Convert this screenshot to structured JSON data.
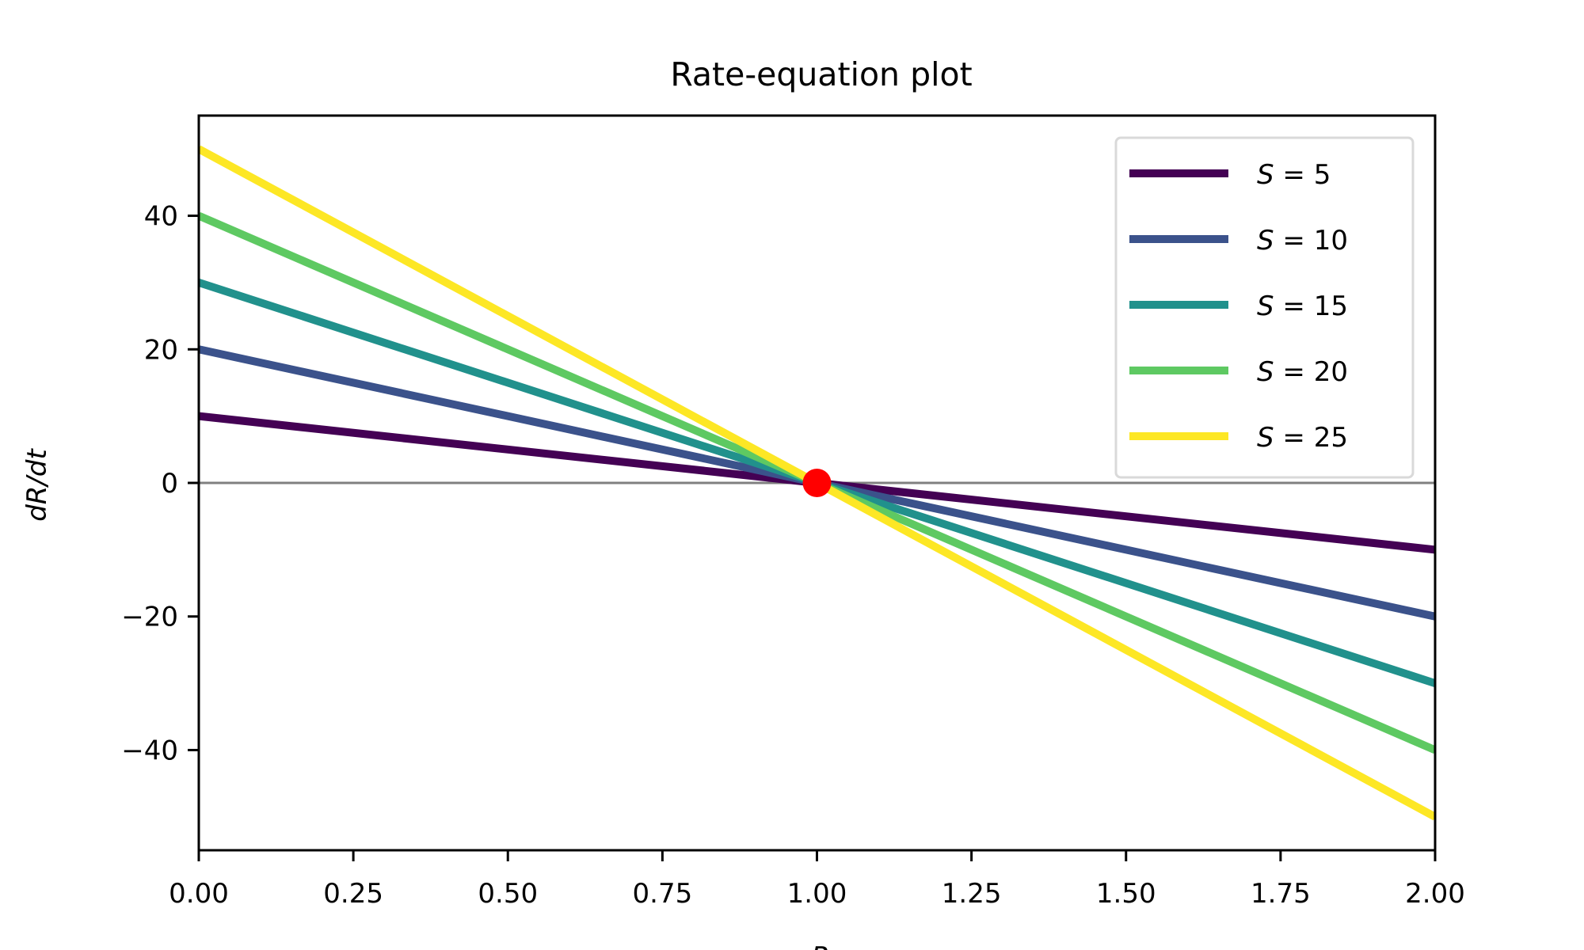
{
  "chart_data": {
    "type": "line",
    "title": "Rate-equation plot",
    "xlabel": "R",
    "ylabel": "dR/dt",
    "xlim": [
      0.0,
      2.0
    ],
    "ylim": [
      -55,
      55
    ],
    "x_ticks": [
      "0.00",
      "0.25",
      "0.50",
      "0.75",
      "1.00",
      "1.25",
      "1.50",
      "1.75",
      "2.00"
    ],
    "y_ticks": [
      "−40",
      "−20",
      "0",
      "20",
      "40"
    ],
    "x_tick_values": [
      0.0,
      0.25,
      0.5,
      0.75,
      1.0,
      1.25,
      1.5,
      1.75,
      2.0
    ],
    "y_tick_values": [
      -40,
      -20,
      0,
      20,
      40
    ],
    "grid": false,
    "legend_position": "top-right",
    "reference_line": {
      "y": 0,
      "color": "#808080"
    },
    "series": [
      {
        "name": "S = 5",
        "italic": "S",
        "rest": " = 5",
        "color": "#440154",
        "x": [
          0.0,
          2.0
        ],
        "y": [
          10,
          -10
        ]
      },
      {
        "name": "S = 10",
        "italic": "S",
        "rest": " = 10",
        "color": "#3b528b",
        "x": [
          0.0,
          2.0
        ],
        "y": [
          20,
          -20
        ]
      },
      {
        "name": "S = 15",
        "italic": "S",
        "rest": " = 15",
        "color": "#21918c",
        "x": [
          0.0,
          2.0
        ],
        "y": [
          30,
          -30
        ]
      },
      {
        "name": "S = 20",
        "italic": "S",
        "rest": " = 20",
        "color": "#5ec962",
        "x": [
          0.0,
          2.0
        ],
        "y": [
          40,
          -40
        ]
      },
      {
        "name": "S = 25",
        "italic": "S",
        "rest": " = 25",
        "color": "#fde725",
        "x": [
          0.0,
          2.0
        ],
        "y": [
          50,
          -50
        ]
      }
    ],
    "marker": {
      "x": 1.0,
      "y": 0,
      "color": "#ff0000"
    }
  }
}
